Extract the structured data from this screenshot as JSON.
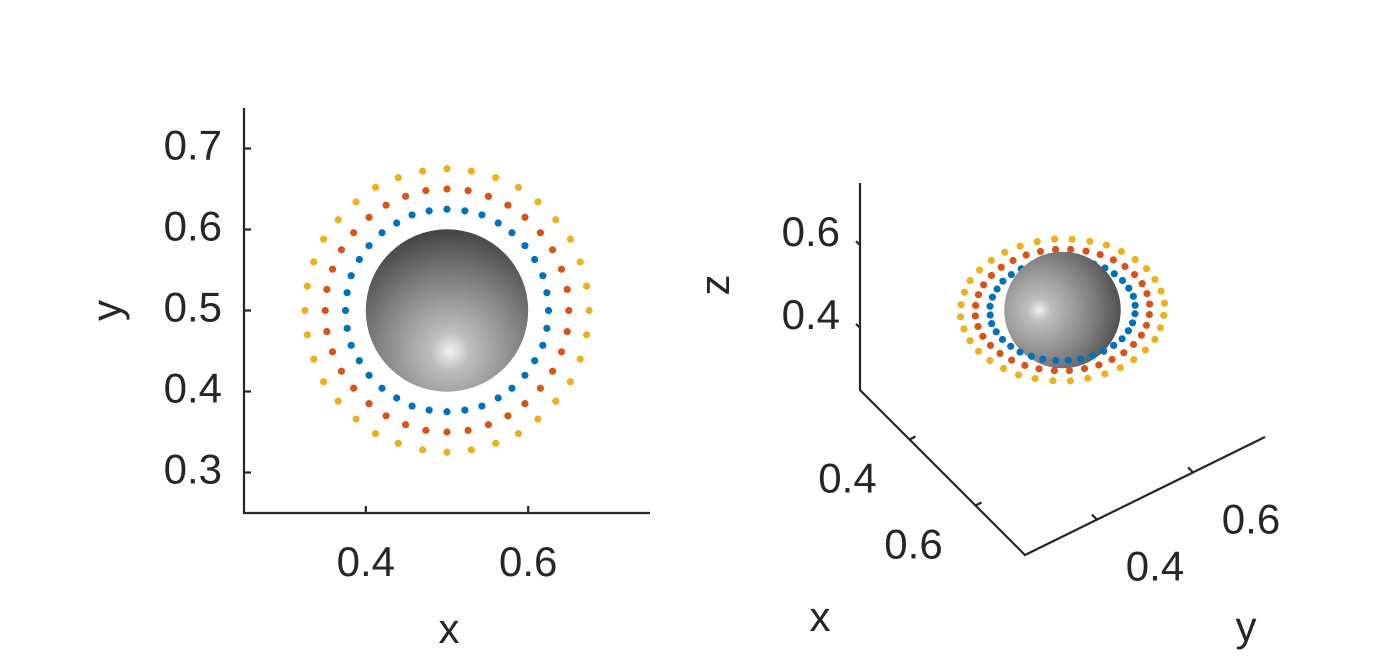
{
  "chart_data": [
    {
      "type": "scatter",
      "xlabel": "x",
      "ylabel": "y",
      "xlim": [
        0.25,
        0.75
      ],
      "ylim": [
        0.25,
        0.75
      ],
      "xticks": [
        0.4,
        0.6
      ],
      "yticks": [
        0.3,
        0.4,
        0.5,
        0.6,
        0.7
      ],
      "sphere": {
        "center": [
          0.5,
          0.5
        ],
        "radius": 0.1
      },
      "series": [
        {
          "color": "#0072bd",
          "x": [
            0.625,
            0.623,
            0.618,
            0.608,
            0.596,
            0.58,
            0.563,
            0.543,
            0.522,
            0.5,
            0.478,
            0.457,
            0.438,
            0.42,
            0.404,
            0.392,
            0.382,
            0.377,
            0.375,
            0.377,
            0.382,
            0.392,
            0.404,
            0.42,
            0.438,
            0.457,
            0.478,
            0.5,
            0.522,
            0.543,
            0.563,
            0.58,
            0.596,
            0.608,
            0.618,
            0.623
          ],
          "y": [
            0.5,
            0.522,
            0.543,
            0.563,
            0.58,
            0.596,
            0.608,
            0.618,
            0.623,
            0.625,
            0.623,
            0.618,
            0.608,
            0.596,
            0.58,
            0.563,
            0.543,
            0.522,
            0.5,
            0.478,
            0.457,
            0.438,
            0.42,
            0.404,
            0.392,
            0.382,
            0.377,
            0.375,
            0.377,
            0.382,
            0.392,
            0.404,
            0.42,
            0.438,
            0.457,
            0.478
          ]
        },
        {
          "color": "#d95319",
          "x": [
            0.65,
            0.648,
            0.641,
            0.63,
            0.615,
            0.596,
            0.575,
            0.551,
            0.526,
            0.5,
            0.474,
            0.449,
            0.425,
            0.404,
            0.385,
            0.37,
            0.359,
            0.352,
            0.35,
            0.352,
            0.359,
            0.37,
            0.385,
            0.404,
            0.425,
            0.449,
            0.474,
            0.5,
            0.526,
            0.551,
            0.575,
            0.596,
            0.615,
            0.63,
            0.641,
            0.648
          ],
          "y": [
            0.5,
            0.526,
            0.551,
            0.575,
            0.596,
            0.615,
            0.63,
            0.641,
            0.648,
            0.65,
            0.648,
            0.641,
            0.63,
            0.615,
            0.596,
            0.575,
            0.551,
            0.526,
            0.5,
            0.474,
            0.449,
            0.425,
            0.404,
            0.385,
            0.37,
            0.359,
            0.352,
            0.35,
            0.352,
            0.359,
            0.37,
            0.385,
            0.404,
            0.425,
            0.449,
            0.474
          ]
        },
        {
          "color": "#edb120",
          "x": [
            0.675,
            0.672,
            0.664,
            0.652,
            0.634,
            0.612,
            0.588,
            0.56,
            0.53,
            0.5,
            0.47,
            0.44,
            0.412,
            0.388,
            0.366,
            0.348,
            0.336,
            0.328,
            0.325,
            0.328,
            0.336,
            0.348,
            0.366,
            0.388,
            0.412,
            0.44,
            0.47,
            0.5,
            0.53,
            0.56,
            0.588,
            0.612,
            0.634,
            0.652,
            0.664,
            0.672
          ],
          "y": [
            0.5,
            0.53,
            0.56,
            0.588,
            0.612,
            0.634,
            0.652,
            0.664,
            0.672,
            0.675,
            0.672,
            0.664,
            0.652,
            0.634,
            0.612,
            0.588,
            0.56,
            0.53,
            0.5,
            0.47,
            0.44,
            0.412,
            0.388,
            0.366,
            0.348,
            0.336,
            0.328,
            0.325,
            0.328,
            0.336,
            0.348,
            0.366,
            0.388,
            0.412,
            0.44,
            0.47
          ]
        }
      ]
    },
    {
      "type": "scatter3d",
      "xlabel": "x",
      "ylabel": "y",
      "zlabel": "z",
      "xlim": [
        0.25,
        0.75
      ],
      "ylim": [
        0.25,
        0.75
      ],
      "zlim": [
        0.25,
        0.75
      ],
      "xticks": [
        0.4,
        0.6
      ],
      "yticks": [
        0.4,
        0.6
      ],
      "zticks": [
        0.4,
        0.6
      ],
      "sphere": {
        "center": [
          0.5,
          0.5,
          0.5
        ],
        "radius": 0.1
      },
      "series": [
        {
          "color": "#0072bd",
          "x": [
            0.625,
            0.623,
            0.618,
            0.608,
            0.596,
            0.58,
            0.563,
            0.543,
            0.522,
            0.5,
            0.478,
            0.457,
            0.438,
            0.42,
            0.404,
            0.392,
            0.382,
            0.377,
            0.375,
            0.377,
            0.382,
            0.392,
            0.404,
            0.42,
            0.438,
            0.457,
            0.478,
            0.5,
            0.522,
            0.543,
            0.563,
            0.58,
            0.596,
            0.608,
            0.618,
            0.623
          ],
          "y": [
            0.5,
            0.522,
            0.543,
            0.563,
            0.58,
            0.596,
            0.608,
            0.618,
            0.623,
            0.625,
            0.623,
            0.618,
            0.608,
            0.596,
            0.58,
            0.563,
            0.543,
            0.522,
            0.5,
            0.478,
            0.457,
            0.438,
            0.42,
            0.404,
            0.392,
            0.382,
            0.377,
            0.375,
            0.377,
            0.382,
            0.392,
            0.404,
            0.42,
            0.438,
            0.457,
            0.478
          ],
          "z": [
            0.5,
            0.5,
            0.5,
            0.5,
            0.5,
            0.5,
            0.5,
            0.5,
            0.5,
            0.5,
            0.5,
            0.5,
            0.5,
            0.5,
            0.5,
            0.5,
            0.5,
            0.5,
            0.5,
            0.5,
            0.5,
            0.5,
            0.5,
            0.5,
            0.5,
            0.5,
            0.5,
            0.5,
            0.5,
            0.5,
            0.5,
            0.5,
            0.5,
            0.5,
            0.5,
            0.5
          ]
        },
        {
          "color": "#d95319",
          "x": [
            0.65,
            0.648,
            0.641,
            0.63,
            0.615,
            0.596,
            0.575,
            0.551,
            0.526,
            0.5,
            0.474,
            0.449,
            0.425,
            0.404,
            0.385,
            0.37,
            0.359,
            0.352,
            0.35,
            0.352,
            0.359,
            0.37,
            0.385,
            0.404,
            0.425,
            0.449,
            0.474,
            0.5,
            0.526,
            0.551,
            0.575,
            0.596,
            0.615,
            0.63,
            0.641,
            0.648
          ],
          "y": [
            0.5,
            0.526,
            0.551,
            0.575,
            0.596,
            0.615,
            0.63,
            0.641,
            0.648,
            0.65,
            0.648,
            0.641,
            0.63,
            0.615,
            0.596,
            0.575,
            0.551,
            0.526,
            0.5,
            0.474,
            0.449,
            0.425,
            0.404,
            0.385,
            0.37,
            0.359,
            0.352,
            0.35,
            0.352,
            0.359,
            0.37,
            0.385,
            0.404,
            0.425,
            0.449,
            0.474
          ],
          "z": [
            0.5,
            0.5,
            0.5,
            0.5,
            0.5,
            0.5,
            0.5,
            0.5,
            0.5,
            0.5,
            0.5,
            0.5,
            0.5,
            0.5,
            0.5,
            0.5,
            0.5,
            0.5,
            0.5,
            0.5,
            0.5,
            0.5,
            0.5,
            0.5,
            0.5,
            0.5,
            0.5,
            0.5,
            0.5,
            0.5,
            0.5,
            0.5,
            0.5,
            0.5,
            0.5,
            0.5
          ]
        },
        {
          "color": "#edb120",
          "x": [
            0.675,
            0.672,
            0.664,
            0.652,
            0.634,
            0.612,
            0.588,
            0.56,
            0.53,
            0.5,
            0.47,
            0.44,
            0.412,
            0.388,
            0.366,
            0.348,
            0.336,
            0.328,
            0.325,
            0.328,
            0.336,
            0.348,
            0.366,
            0.388,
            0.412,
            0.44,
            0.47,
            0.5,
            0.53,
            0.56,
            0.588,
            0.612,
            0.634,
            0.652,
            0.664,
            0.672
          ],
          "y": [
            0.5,
            0.53,
            0.56,
            0.588,
            0.612,
            0.634,
            0.652,
            0.664,
            0.672,
            0.675,
            0.672,
            0.664,
            0.652,
            0.634,
            0.612,
            0.588,
            0.56,
            0.53,
            0.5,
            0.47,
            0.44,
            0.412,
            0.388,
            0.366,
            0.348,
            0.336,
            0.328,
            0.325,
            0.328,
            0.336,
            0.348,
            0.366,
            0.388,
            0.412,
            0.44,
            0.47
          ],
          "z": [
            0.5,
            0.5,
            0.5,
            0.5,
            0.5,
            0.5,
            0.5,
            0.5,
            0.5,
            0.5,
            0.5,
            0.5,
            0.5,
            0.5,
            0.5,
            0.5,
            0.5,
            0.5,
            0.5,
            0.5,
            0.5,
            0.5,
            0.5,
            0.5,
            0.5,
            0.5,
            0.5,
            0.5,
            0.5,
            0.5,
            0.5,
            0.5,
            0.5,
            0.5,
            0.5,
            0.5
          ]
        }
      ]
    }
  ]
}
